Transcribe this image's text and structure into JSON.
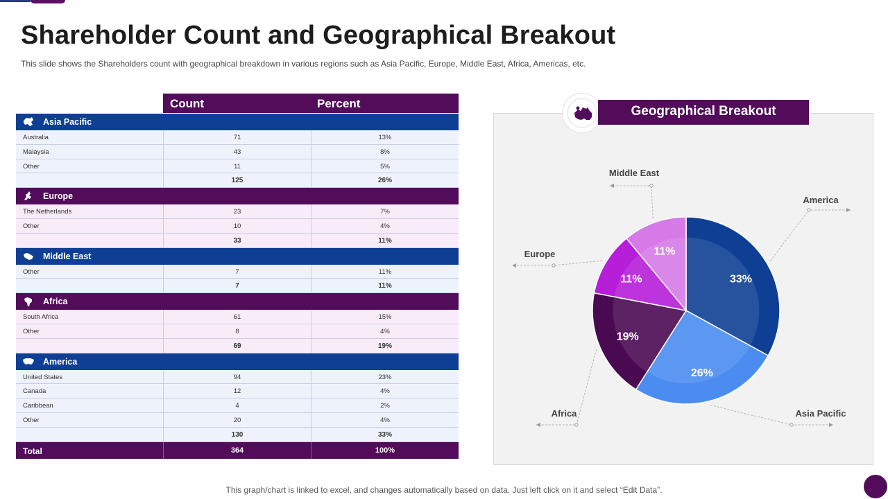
{
  "title": "Shareholder Count and Geographical Breakout",
  "subtitle": "This slide shows the Shareholders count with geographical breakdown in various regions such as Asia Pacific, Europe, Middle East, Africa,  Americas, etc.",
  "table": {
    "col_count": "Count",
    "col_percent": "Percent",
    "sections": [
      {
        "name": "Asia Pacific",
        "color": "#0e3f94",
        "icon": "asia-pacific-map-icon",
        "rows": [
          [
            "Australia",
            "71",
            "13%"
          ],
          [
            "Malaysia",
            "43",
            "8%"
          ],
          [
            "Other",
            "11",
            "5%"
          ]
        ],
        "subtotal": [
          "125",
          "26%"
        ]
      },
      {
        "name": "Europe",
        "color": "#520c5a",
        "icon": "europe-map-icon",
        "rows": [
          [
            "The Netherlands",
            "23",
            "7%"
          ],
          [
            "Other",
            "10",
            "4%"
          ]
        ],
        "subtotal": [
          "33",
          "11%"
        ]
      },
      {
        "name": "Middle East",
        "color": "#0e3f94",
        "icon": "middle-east-map-icon",
        "rows": [
          [
            "Other",
            "7",
            "11%"
          ]
        ],
        "subtotal": [
          "7",
          "11%"
        ]
      },
      {
        "name": "Africa",
        "color": "#520c5a",
        "icon": "africa-map-icon",
        "rows": [
          [
            "South Africa",
            "61",
            "15%"
          ],
          [
            "Other",
            "8",
            "4%"
          ]
        ],
        "subtotal": [
          "69",
          "19%"
        ]
      },
      {
        "name": "America",
        "color": "#0e3f94",
        "icon": "america-map-icon",
        "rows": [
          [
            "United States",
            "94",
            "23%"
          ],
          [
            "Canada",
            "12",
            "4%"
          ],
          [
            "Caribbean",
            "4",
            "2%"
          ],
          [
            "Other",
            "20",
            "4%"
          ]
        ],
        "subtotal": [
          "130",
          "33%"
        ]
      }
    ],
    "total": {
      "label": "Total",
      "count": "364",
      "percent": "100%"
    }
  },
  "chart_title": "Geographical Breakout",
  "chart_data": {
    "type": "pie",
    "slices": [
      {
        "name": "America",
        "value": 33,
        "label": "33%",
        "color": "#0e3f94"
      },
      {
        "name": "Asia Pacific",
        "value": 26,
        "label": "26%",
        "color": "#4a8cf0"
      },
      {
        "name": "Africa",
        "value": 19,
        "label": "19%",
        "color": "#4a0a52"
      },
      {
        "name": "Europe",
        "value": 11,
        "label": "11%",
        "color": "#b61ed9"
      },
      {
        "name": "Middle East",
        "value": 11,
        "label": "11%",
        "color": "#d67ae8"
      }
    ],
    "legend_placement": "callouts"
  },
  "footer": "This graph/chart is linked to excel,  and changes automatically based on data. Just left click on it and select “Edit Data”."
}
